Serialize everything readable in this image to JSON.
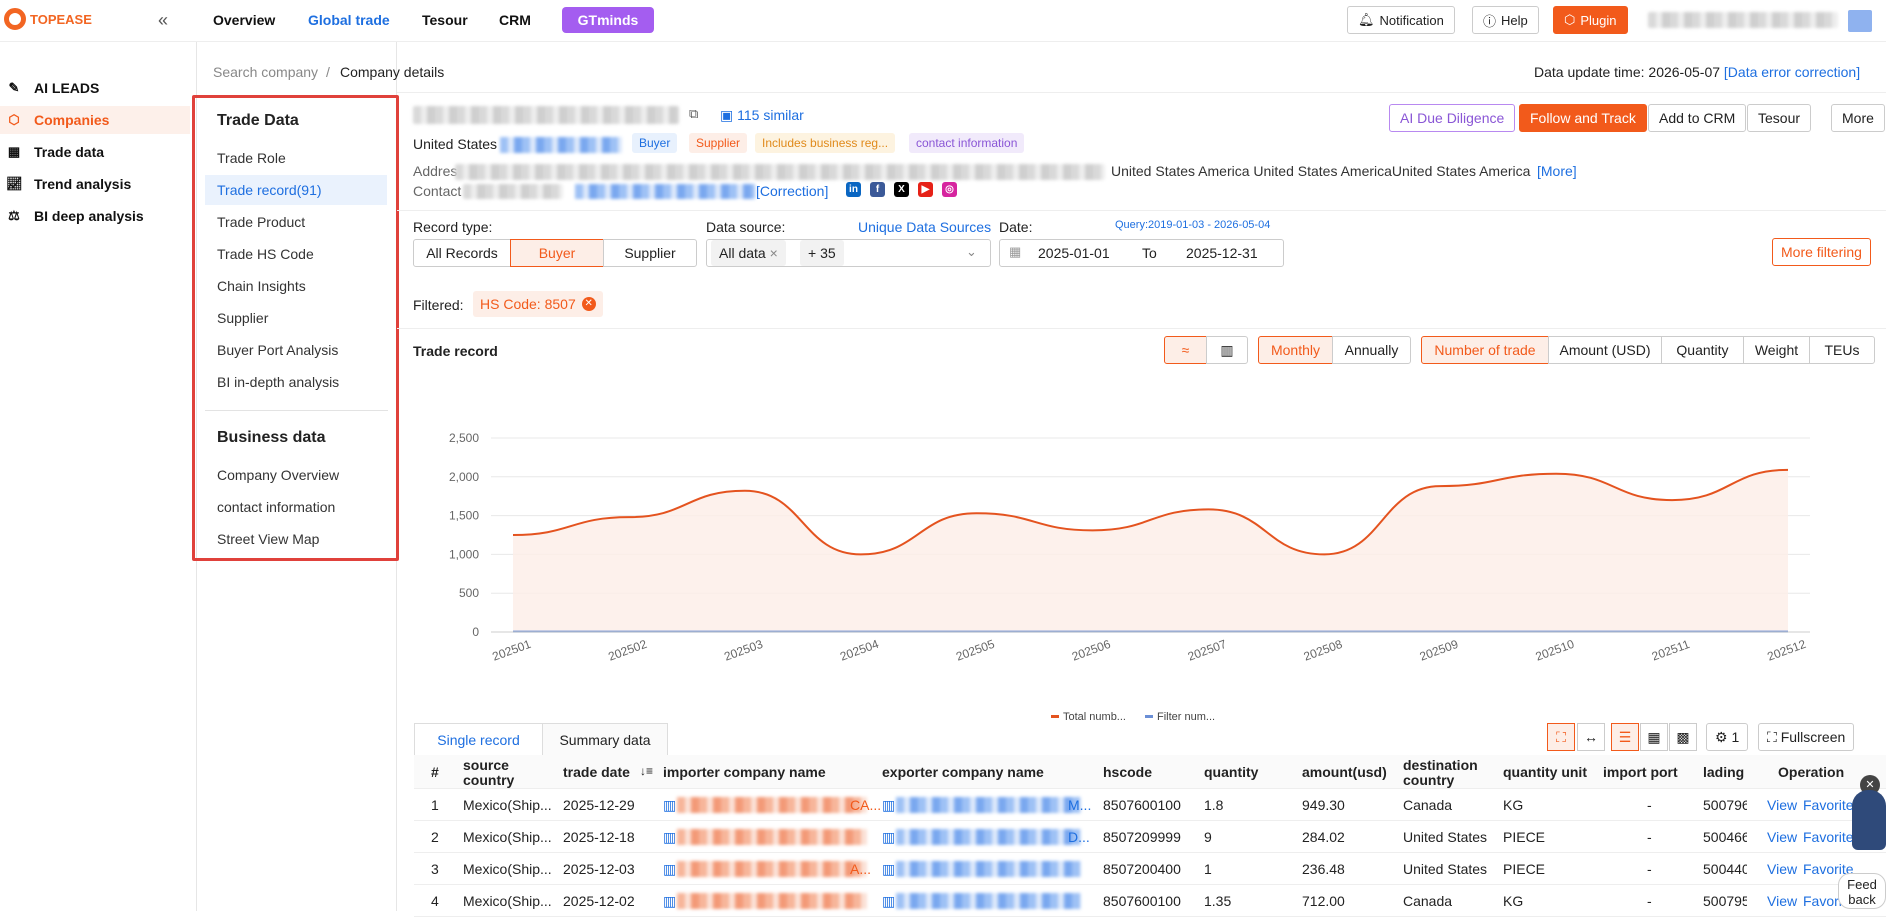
{
  "app": {
    "logo_text": "TOPEASE",
    "collapse_icon": "«"
  },
  "topnav": [
    {
      "label": "Overview"
    },
    {
      "label": "Global trade"
    },
    {
      "label": "Tesour"
    },
    {
      "label": "CRM"
    },
    {
      "label": "GTminds"
    }
  ],
  "topbar_right": {
    "notification": "Notification",
    "help": "Help",
    "plugin": "Plugin"
  },
  "leftnav": [
    {
      "label": "AI LEADS",
      "icon": "ai-leads-icon"
    },
    {
      "label": "Companies",
      "icon": "companies-icon"
    },
    {
      "label": "Trade data",
      "icon": "trade-data-icon"
    },
    {
      "label": "Trend analysis",
      "icon": "trend-icon"
    },
    {
      "label": "BI deep analysis",
      "icon": "bi-icon"
    }
  ],
  "subnav": {
    "trade_head": "Trade Data",
    "trade_items": [
      "Trade Role",
      "Trade record(91)",
      "Trade Product",
      "Trade HS Code",
      "Chain Insights",
      "Supplier",
      "Buyer Port Analysis",
      "BI in-depth analysis"
    ],
    "business_head": "Business data",
    "business_items": [
      "Company Overview",
      "contact information",
      "Street View Map"
    ]
  },
  "breadcrumb": {
    "root": "Search company",
    "sep": "/",
    "current": "Company details"
  },
  "update": {
    "label": "Data update time:",
    "date": "2026-05-07",
    "link": "[Data error correction]"
  },
  "company": {
    "similar": "115 similar",
    "country": "United States",
    "badges": [
      "Buyer",
      "Supplier",
      "Includes business reg...",
      "contact information"
    ],
    "address_label": "Address",
    "address_tail": "United States America United States AmericaUnited States America",
    "more": "[More]",
    "contact_label": "Contact",
    "correction": "[Correction]"
  },
  "actions": {
    "ai": "AI Due Diligence",
    "follow": "Follow and Track",
    "crm": "Add to CRM",
    "tesour": "Tesour",
    "more": "More"
  },
  "filters": {
    "record_type_label": "Record type:",
    "record_types": [
      "All Records",
      "Buyer",
      "Supplier"
    ],
    "source_label": "Data source:",
    "unique": "Unique Data Sources",
    "source_chip": "All data",
    "source_more": "+ 35",
    "date_label": "Date:",
    "query": "Query:2019-01-03 - 2026-05-04",
    "date_from": "2025-01-01",
    "date_to_label": "To",
    "date_to": "2025-12-31",
    "more_filter": "More filtering",
    "filtered_label": "Filtered:",
    "filtered_chip": "HS Code: 8507"
  },
  "trade_record": {
    "title": "Trade record",
    "periods": [
      "Monthly",
      "Annually"
    ],
    "metrics": [
      "Number of trade",
      "Amount (USD)",
      "Quantity",
      "Weight",
      "TEUs"
    ]
  },
  "chart_data": {
    "type": "area",
    "x": [
      "202501",
      "202502",
      "202503",
      "202504",
      "202505",
      "202506",
      "202507",
      "202508",
      "202509",
      "202510",
      "202511",
      "202512"
    ],
    "yticks": [
      "2,500",
      "2,000",
      "1,500",
      "1,000",
      "500",
      "0"
    ],
    "ylim": [
      0,
      2500
    ],
    "series": [
      {
        "name": "Total numb...",
        "color": "#e4531f",
        "values": [
          1250,
          1480,
          1820,
          1000,
          1530,
          1310,
          1580,
          1000,
          1880,
          2040,
          1700,
          2090
        ]
      },
      {
        "name": "Filter num...",
        "color": "#6b8fd6",
        "values": [
          5,
          5,
          5,
          5,
          5,
          5,
          5,
          5,
          5,
          5,
          5,
          5
        ]
      }
    ],
    "legend_position": "bottom"
  },
  "tabs": {
    "single": "Single record",
    "summary": "Summary data",
    "settings": "1",
    "fullscreen": "Fullscreen"
  },
  "table": {
    "headers": [
      "#",
      "source country",
      "trade date",
      "importer company name",
      "exporter company name",
      "hscode",
      "quantity",
      "amount(usd)",
      "destination country",
      "quantity unit",
      "import port",
      "lading",
      "Operation"
    ],
    "rows": [
      {
        "n": "1",
        "src": "Mexico(Ship...",
        "date": "2025-12-29",
        "imp_tail": "CA...",
        "exp_tail": "M...",
        "hs": "8507600100",
        "qty": "1.8",
        "amt": "949.30",
        "dest": "Canada",
        "unit": "KG",
        "port": "-",
        "lading": "500796",
        "view": "View",
        "fav": "Favorite"
      },
      {
        "n": "2",
        "src": "Mexico(Ship...",
        "date": "2025-12-18",
        "imp_tail": "",
        "exp_tail": "D...",
        "hs": "8507209999",
        "qty": "9",
        "amt": "284.02",
        "dest": "United States",
        "unit": "PIECE",
        "port": "-",
        "lading": "500466",
        "view": "View",
        "fav": "Favorite"
      },
      {
        "n": "3",
        "src": "Mexico(Ship...",
        "date": "2025-12-03",
        "imp_tail": "A...",
        "exp_tail": "",
        "hs": "8507200400",
        "qty": "1",
        "amt": "236.48",
        "dest": "United States",
        "unit": "PIECE",
        "port": "-",
        "lading": "500440",
        "view": "View",
        "fav": "Favorite"
      },
      {
        "n": "4",
        "src": "Mexico(Ship...",
        "date": "2025-12-02",
        "imp_tail": "",
        "exp_tail": "",
        "hs": "8507600100",
        "qty": "1.35",
        "amt": "712.00",
        "dest": "Canada",
        "unit": "KG",
        "port": "-",
        "lading": "500795",
        "view": "View",
        "fav": "Favorite"
      }
    ]
  },
  "feedback": "Feed back"
}
